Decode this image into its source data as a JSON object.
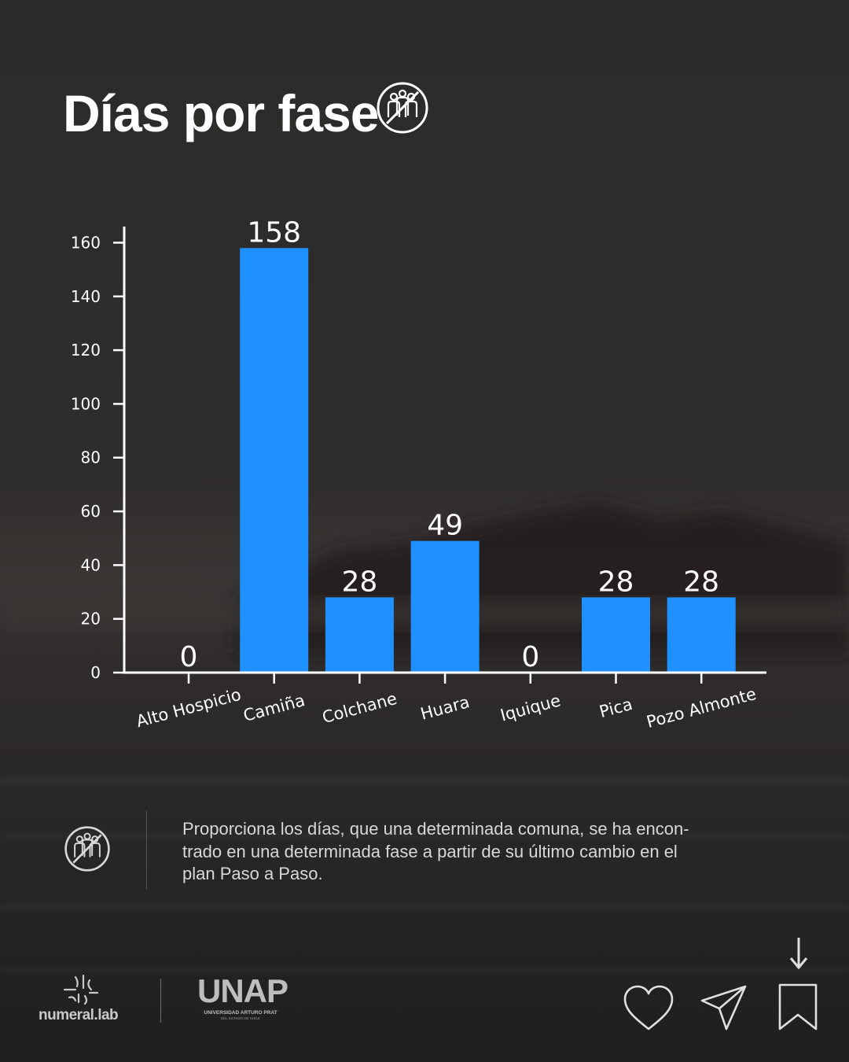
{
  "header": {
    "title": "Días por fase",
    "title_icon": "people-crossed-icon"
  },
  "chart_data": {
    "type": "bar",
    "title": "",
    "xlabel": "",
    "ylabel": "",
    "categories": [
      "Alto Hospicio",
      "Camiña",
      "Colchane",
      "Huara",
      "Iquique",
      "Pica",
      "Pozo Almonte"
    ],
    "values": [
      0,
      158,
      28,
      49,
      0,
      28,
      28
    ],
    "data_labels": [
      "0",
      "158",
      "28",
      "49",
      "0",
      "28",
      "28"
    ],
    "ylim": [
      0,
      166
    ],
    "yticks": [
      0,
      20,
      40,
      60,
      80,
      100,
      120,
      140,
      160
    ],
    "grid": false,
    "bar_color": "#1e90ff",
    "axis_color": "#ffffff",
    "tick_label_rotation": 15
  },
  "description": {
    "icon": "people-crossed-icon",
    "lines": [
      "Proporciona los días, que una determinada comuna, se ha encon-",
      "trado en una determinada fase a partir de su último cambio en el",
      "plan Paso a Paso."
    ]
  },
  "footer": {
    "brand_left": "numeral.lab",
    "brand_left_icon": "numeral-logo-icon",
    "brand_right": "UNAP",
    "brand_right_sub": "UNIVERSIDAD ARTURO PRAT",
    "brand_right_sub2": "DEL ESTADO DE CHILE",
    "actions": [
      {
        "name": "like",
        "icon": "heart-icon"
      },
      {
        "name": "share",
        "icon": "paper-plane-icon"
      },
      {
        "name": "save",
        "icon": "bookmark-icon"
      }
    ],
    "save_hint_icon": "arrow-down-icon"
  },
  "colors": {
    "background": "#2a2a2a",
    "accent": "#1e90ff",
    "text": "#ffffff"
  }
}
